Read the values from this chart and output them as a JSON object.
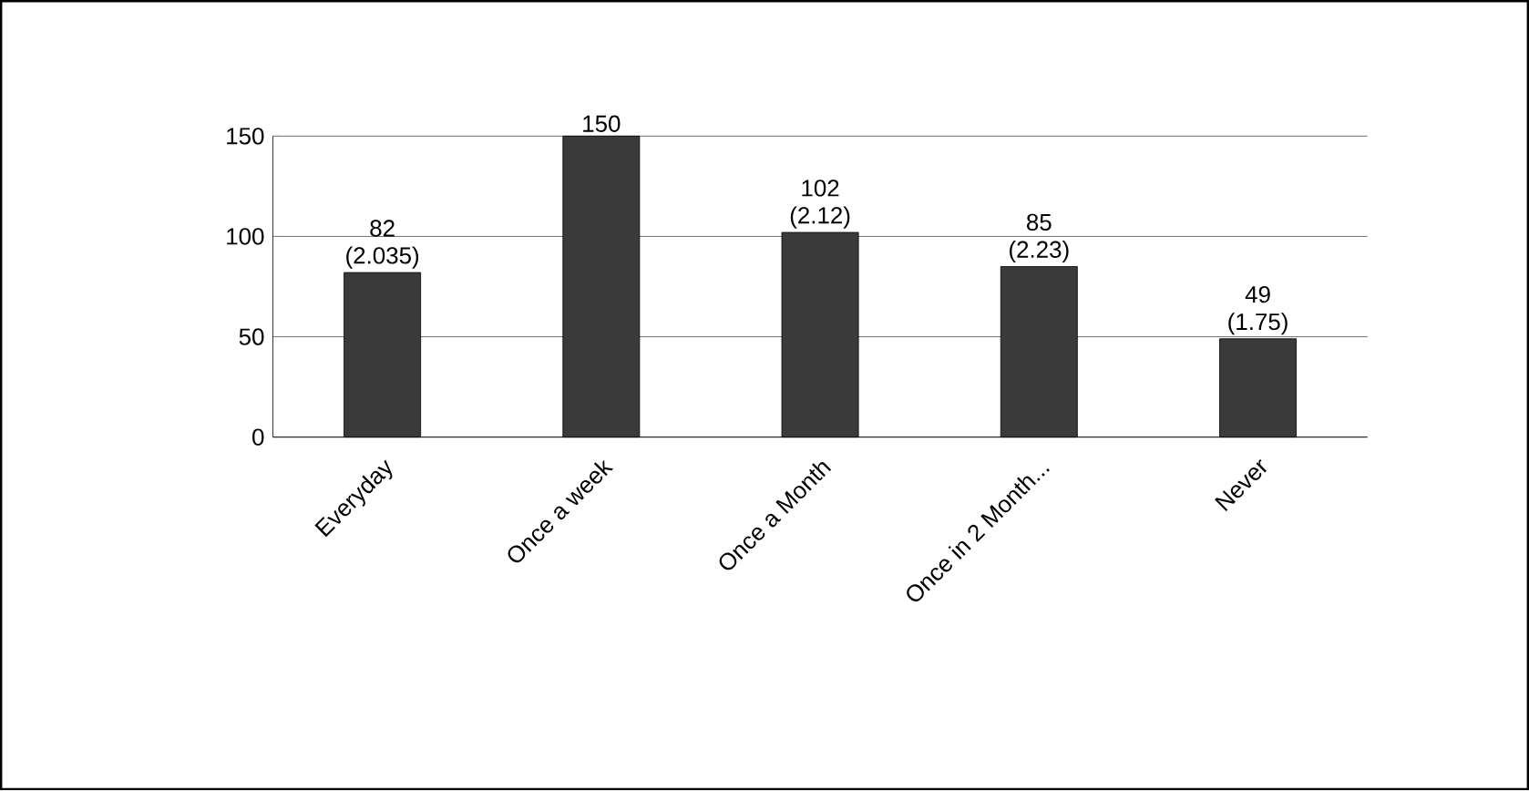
{
  "chart_data": {
    "type": "bar",
    "categories": [
      "Everyday",
      "Once a week",
      "Once a Month",
      "Once in 2 Month...",
      "Never"
    ],
    "values": [
      82,
      150,
      102,
      85,
      49
    ],
    "value_labels": [
      "82 (2.035)",
      "150",
      "102 (2.12)",
      "85 (2.23)",
      "49 (1.75)"
    ],
    "color": "#3a3a3a",
    "ylim": [
      0,
      150
    ],
    "yticks": [
      0,
      50,
      100,
      150
    ],
    "grid": "y"
  }
}
